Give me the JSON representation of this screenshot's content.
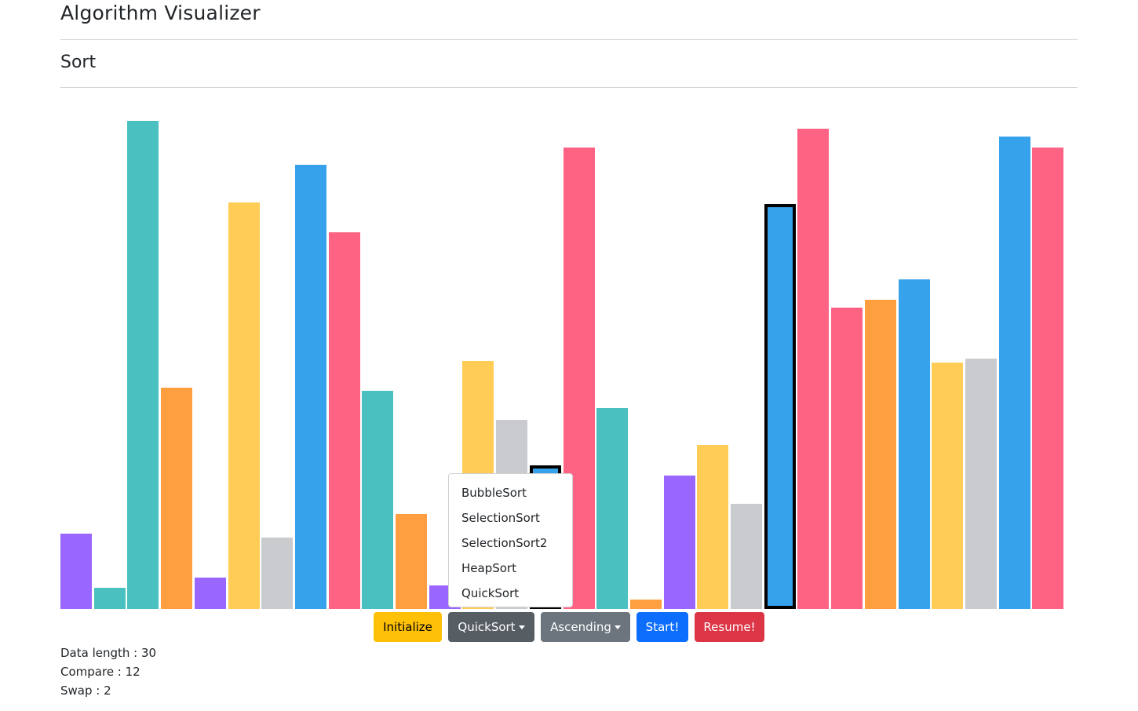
{
  "header": {
    "title": "Algorithm Visualizer"
  },
  "section": {
    "title": "Sort"
  },
  "chart_data": {
    "type": "bar",
    "max_value": 100,
    "values": [
      15.5,
      4.3,
      100,
      45.4,
      6.4,
      83.3,
      14.7,
      91,
      77.1,
      44.7,
      19.4,
      4.9,
      50.8,
      38.7,
      29.5,
      94.6,
      41.1,
      1.9,
      27.4,
      33.6,
      21.6,
      82.9,
      98.4,
      61.7,
      63.3,
      67.6,
      50.5,
      51.3,
      96.8,
      94.5
    ],
    "colors": [
      "#9966ff",
      "#4bc0c0",
      "#4bc0c0",
      "#ff9f40",
      "#9966ff",
      "#ffcd56",
      "#c9cbcf",
      "#36a2eb",
      "#ff6384",
      "#4bc0c0",
      "#ff9f40",
      "#9966ff",
      "#ffcd56",
      "#c9cbcf",
      "#36a2eb",
      "#ff6384",
      "#4bc0c0",
      "#ff9f40",
      "#9966ff",
      "#ffcd56",
      "#c9cbcf",
      "#36a2eb",
      "#ff6384",
      "#ff6384",
      "#ff9f40",
      "#36a2eb",
      "#ffcd56",
      "#c9cbcf",
      "#36a2eb",
      "#ff6384"
    ],
    "highlighted": [
      14,
      21
    ]
  },
  "controls": {
    "initialize_label": "Initialize",
    "algorithm_label": "QuickSort",
    "order_label": "Ascending",
    "start_label": "Start!",
    "resume_label": "Resume!"
  },
  "algorithm_menu": {
    "items": [
      "BubbleSort",
      "SelectionSort",
      "SelectionSort2",
      "HeapSort",
      "QuickSort"
    ]
  },
  "stats": {
    "data_length_label": "Data length : ",
    "data_length": "30",
    "compare_label": "Compare : ",
    "compare": "12",
    "swap_label": "Swap : ",
    "swap": "2"
  }
}
